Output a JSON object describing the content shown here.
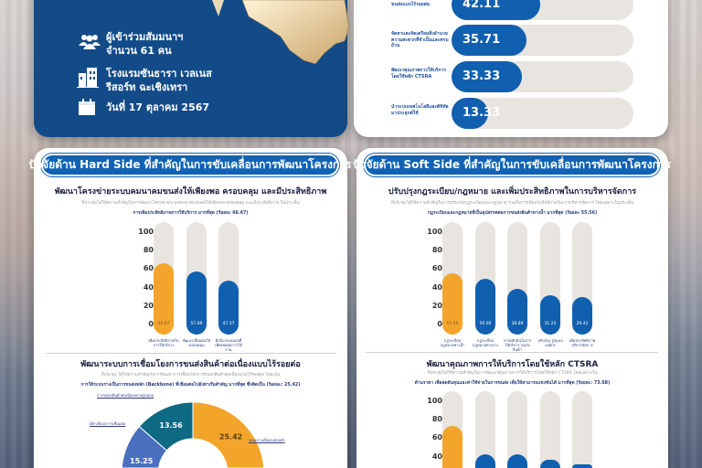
{
  "event": {
    "participants_line1": "ผู้เข้าร่วมสัมมนาฯ",
    "participants_line2": "จำนวน 61 คน",
    "venue_line1": "โรงแรมซันธารา เวลเนส",
    "venue_line2": "รีสอร์ท ฉะเชิงเทรา",
    "date": "วันที่ 17 ตุลาคม 2567",
    "icons": [
      "people-icon",
      "building-icon",
      "calendar-icon"
    ]
  },
  "top_ranking": {
    "items": [
      {
        "label": "เชื่อมโยงและเชื่อมต่อการขนส่งแบบไร้รอยต่อ",
        "value": "42.11",
        "pct": 42.11
      },
      {
        "label": "จัดหาและจัดเตรียมสิ่งอำนวยความสะดวกที่จำเป็นและครบถ้วน",
        "value": "35.71",
        "pct": 35.71
      },
      {
        "label": "พัฒนาคุณภาพการให้บริการโดยใช้หลัก CTSRA",
        "value": "33.33",
        "pct": 33.33
      },
      {
        "label": "นำระบบเทคโนโลยีและดิจิทัลมาประยุกต์ใช้",
        "value": "13.33",
        "pct": 13.33
      }
    ]
  },
  "hard_side": {
    "title": "ปัจจัยด้าน Hard Side ที่สำคัญในการขับเคลื่อนการพัฒนาโครงการ",
    "section1": {
      "subtitle": "พัฒนาโครงข่ายระบบคมนาคมขนส่งให้เพียงพอ ครอบคลุม และมีประสิทธิภาพ",
      "desc": "ที่ประชุมได้ให้ความสำคัญในการพัฒนาโครงข่ายระบบคมนาคมขนส่งให้เพียงพอ ครอบคลุม และมีประสิทธิภาพ ในประเด็น",
      "highlight": "การเพิ่มประสิทธิภาพการให้บริการ มากที่สุด (ร้อยละ 66.67)"
    },
    "section2": {
      "subtitle": "พัฒนาระบบการเชื่อมโยงการขนส่งสินค้าต่อเนื่องแบบไร้รอยต่อ",
      "desc": "ที่ประชุม ได้ให้ความสำคัญกับการพัฒนาการเชื่อมโยงการขนส่งสินค้าต่อเนื่องแบบไร้รอยต่อ โดยเน้น",
      "highlight": "การให้ระบบรางเป็นการขนส่งหลัก (Backbone) ที่เชื่อมต่อไปยังท่าเรือสำคัญ มากที่สุด ซึ่งคิดเป็น (ร้อยละ: 25.42)"
    }
  },
  "soft_side": {
    "title": "ปัจจัยด้าน Soft Side ที่สำคัญในการขับเคลื่อนการพัฒนาโครงการ",
    "section1": {
      "subtitle": "ปรับปรุงกฎระเบียบ/กฎหมาย และเพิ่มประสิทธิภาพในการบริหารจัดการ",
      "desc": "ที่ประชุมได้ให้ความสำคัญในการปรับปรุงกฎระเบียบและกฎหมาย รวมถึงการเพิ่มประสิทธิภาพในการบริหารจัดการ โดยเฉพาะในประเด็น",
      "highlight": "กฎระเบียบและกฎหมายที่เป็นอุปสรรคต่อการขนส่งสินค้าทางน้ำ มากที่สุด (ร้อยละ 55.56)"
    },
    "section2": {
      "subtitle": "พัฒนาคุณภาพการให้บริการโดยใช้หลัก CTSRA",
      "desc": "ที่ประชุมได้ให้ความสำคัญในการพัฒนาคุณภาพการให้บริการโดยใช้หลัก CTSRA โดยเฉพาะใน",
      "highlight": "ด้านราคา เพื่อลดต้นทุนและค่าใช้จ่ายในการขนส่ง เพื่อให้สามารถแข่งขันได้ มากที่สุด (ร้อยละ: 73.68)"
    }
  },
  "colors": {
    "navy": "#124b88",
    "blue": "#1160b0",
    "orange": "#f2a52a",
    "track": "#e8e4df",
    "teal": "#0e6a82",
    "slate": "#4a6fbf",
    "dark_orange": "#e07b22"
  },
  "chart_data": [
    {
      "type": "bar",
      "title": "พัฒนาโครงข่ายระบบคมนาคมขนส่งให้เพียงพอ ครอบคลุม และมีประสิทธิภาพ",
      "yticks": [
        "0",
        "20",
        "40",
        "60",
        "80",
        "100"
      ],
      "ylim": [
        0,
        100
      ],
      "categories": [
        "เพิ่มประสิทธิภาพในการให้บริการ",
        "พัฒนาเชื่อมต่อให้ครอบคลุม",
        "มีปริมาณขนส่งที่เพียงพอต่อการใช้งาน"
      ],
      "values": [
        66.67,
        57.89,
        47.37
      ],
      "labels": [
        "66.67",
        "57.89",
        "47.37"
      ]
    },
    {
      "type": "bar",
      "title": "ปรับปรุงกฎระเบียบ/กฎหมาย และเพิ่มประสิทธิภาพในการบริหารจัดการ",
      "yticks": [
        "0",
        "20",
        "40",
        "60",
        "80",
        "100"
      ],
      "ylim": [
        0,
        100
      ],
      "categories": [
        "กฎระเบียบ กฎหมายทางน้ำ",
        "กฎระเบียบ กฎหมายทางราง",
        "การผลักดันในการให้บริการ ขนส่งสินค้า",
        "ปรับปรุง รูปแบบองค์กร",
        "เพิ่มประสิทธิภาพ บริหารจัดการ"
      ],
      "values": [
        55.56,
        50.0,
        38.89,
        31.25,
        29.41
      ],
      "labels": [
        "55.56",
        "50.00",
        "38.89",
        "31.25",
        "29.41"
      ]
    },
    {
      "type": "pie",
      "title": "พัฒนาระบบการเชื่อมโยงการขนส่งสินค้าต่อเนื่องแบบไร้รอยต่อ",
      "slices": [
        {
          "label": "ระบบรางเป็นขนส่งหลัก",
          "value": 25.42,
          "text": "25.42",
          "color": "#f2a52a",
          "direction": "cw"
        },
        {
          "label": "การขนส่งสินค้าต่อเนื่องหลายรูปแบบ",
          "value": 13.56,
          "text": "13.56",
          "color": "#0e6a82",
          "direction": "ccw"
        },
        {
          "label": "มีท่าเรือบกการเชื่อมต่อ",
          "value": 15.25,
          "text": "15.25",
          "color": "#4a6fbf",
          "direction": "ccw"
        }
      ]
    },
    {
      "type": "bar",
      "title": "พัฒนาคุณภาพการให้บริการโดยใช้หลัก CTSRA",
      "yticks": [
        "40",
        "60",
        "80",
        "100"
      ],
      "ylim": [
        0,
        100
      ],
      "values": [
        73.68,
        42.11,
        42.11,
        36.84,
        31.58
      ]
    }
  ]
}
